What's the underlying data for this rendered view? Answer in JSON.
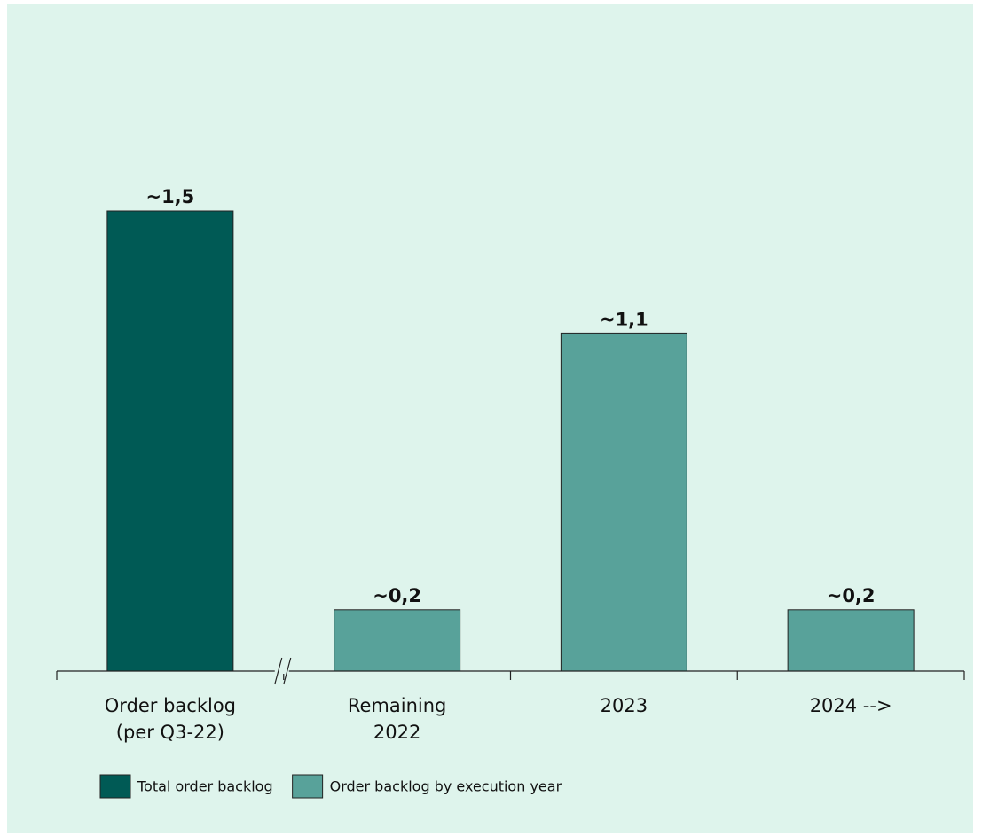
{
  "chart_data": {
    "type": "bar",
    "categories": [
      "Order backlog\n(per Q3-22)",
      "Remaining\n2022",
      "2023",
      "2024 -->"
    ],
    "series": [
      {
        "name": "Total order backlog",
        "color": "#005a55",
        "values": [
          1.5,
          null,
          null,
          null
        ],
        "value_labels": [
          "~1,5",
          null,
          null,
          null
        ]
      },
      {
        "name": "Order backlog by execution year",
        "color": "#58a29a",
        "values": [
          null,
          0.2,
          1.1,
          0.2
        ],
        "value_labels": [
          null,
          "~0,2",
          "~1,1",
          "~0,2"
        ]
      }
    ],
    "axis_break": true
  }
}
